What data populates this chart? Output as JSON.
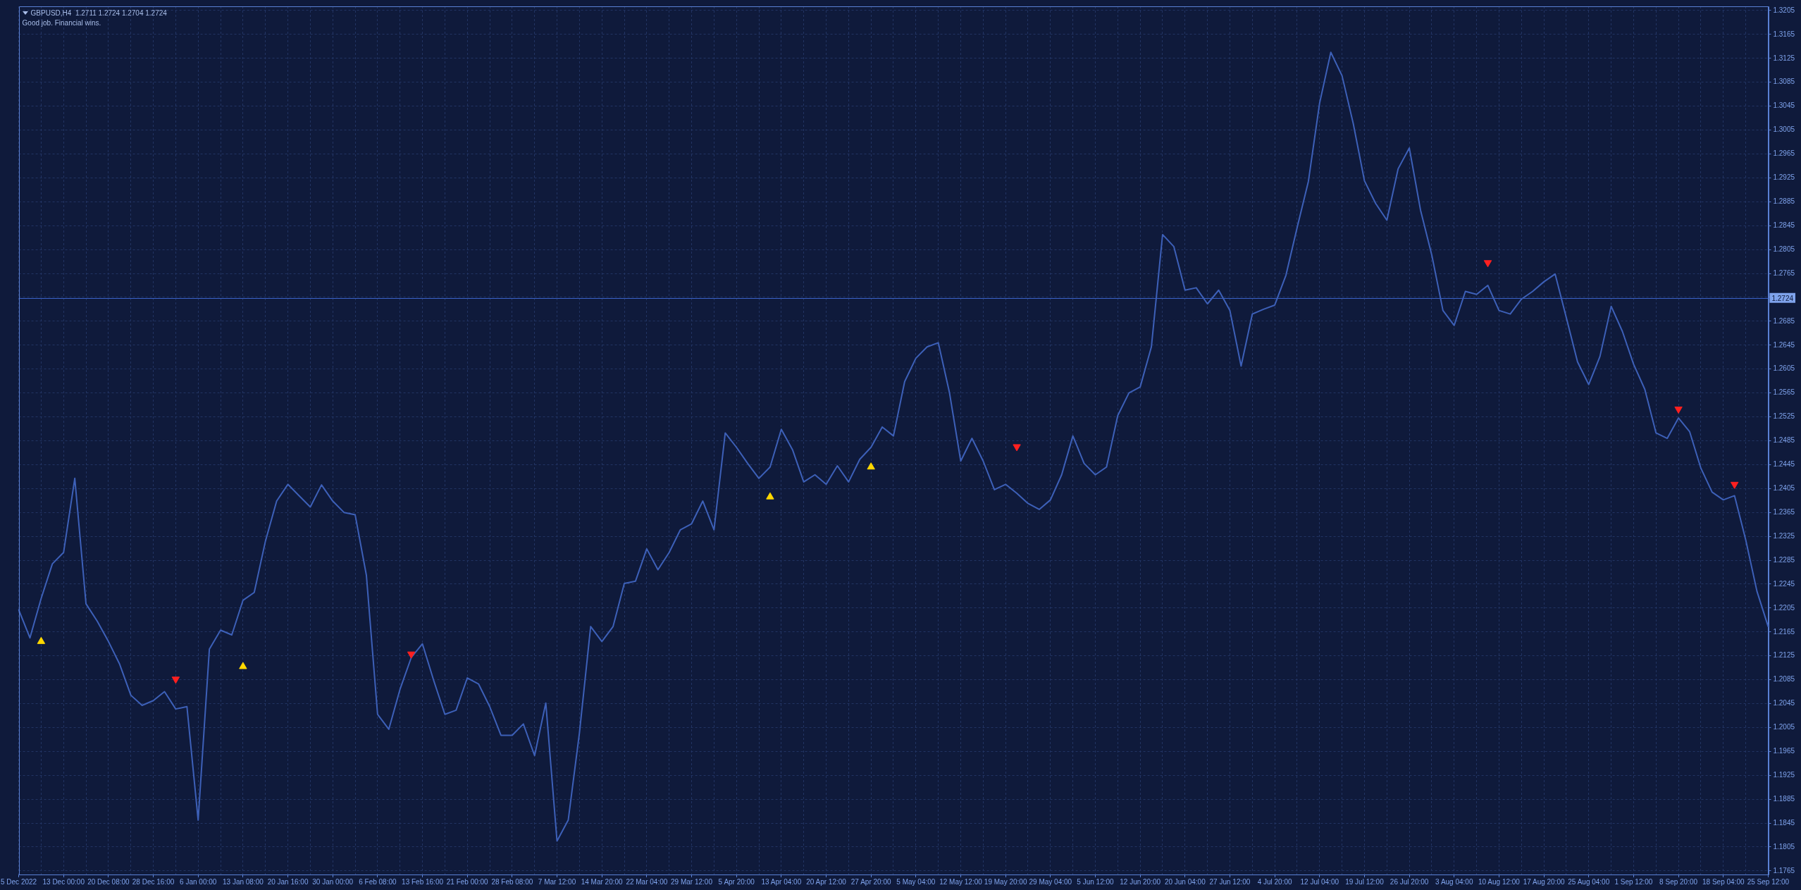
{
  "chart_data": {
    "type": "line",
    "title": "GBPUSD,H4  1.2711 1.2724 1.2704 1.2724",
    "annotations": [
      "Good job. Financial wins."
    ],
    "categories": [
      "5 Dec 2022",
      null,
      null,
      null,
      "13 Dec 00:00",
      null,
      null,
      null,
      "20 Dec 08:00",
      null,
      null,
      null,
      "28 Dec 16:00",
      null,
      null,
      null,
      "6 Jan 00:00",
      null,
      null,
      null,
      "13 Jan 08:00",
      null,
      null,
      null,
      "20 Jan 16:00",
      null,
      null,
      null,
      "30 Jan 00:00",
      null,
      null,
      null,
      "6 Feb 08:00",
      null,
      null,
      null,
      "13 Feb 16:00",
      null,
      null,
      null,
      "21 Feb 00:00",
      null,
      null,
      null,
      "28 Feb 08:00",
      null,
      null,
      null,
      "7 Mar 12:00",
      null,
      null,
      null,
      "14 Mar 20:00",
      null,
      null,
      null,
      "22 Mar 04:00",
      null,
      null,
      null,
      "29 Mar 12:00",
      null,
      null,
      null,
      "5 Apr 20:00",
      null,
      null,
      null,
      "13 Apr 04:00",
      null,
      null,
      null,
      "20 Apr 12:00",
      null,
      null,
      null,
      "27 Apr 20:00",
      null,
      null,
      null,
      "5 May 04:00",
      null,
      null,
      null,
      "12 May 12:00",
      null,
      null,
      null,
      "19 May 20:00",
      null,
      null,
      null,
      "29 May 04:00",
      null,
      null,
      null,
      "5 Jun 12:00",
      null,
      null,
      null,
      "12 Jun 20:00",
      null,
      null,
      null,
      "20 Jun 04:00",
      null,
      null,
      null,
      "27 Jun 12:00",
      null,
      null,
      null,
      "4 Jul 20:00",
      null,
      null,
      null,
      "12 Jul 04:00",
      null,
      null,
      null,
      "19 Jul 12:00",
      null,
      null,
      null,
      "26 Jul 20:00",
      null,
      null,
      null,
      "3 Aug 04:00",
      null,
      null,
      null,
      "10 Aug 12:00",
      null,
      null,
      null,
      "17 Aug 20:00",
      null,
      null,
      null,
      "25 Aug 04:00",
      null,
      null,
      null,
      "1 Sep 12:00",
      null,
      null,
      null,
      "8 Sep 20:00",
      null,
      null,
      null,
      "18 Sep 04:00",
      null,
      null,
      null,
      "25 Sep 12:00"
    ],
    "series": [
      {
        "color": "#3d60b8",
        "values": [
          1.2202,
          1.2155,
          1.2221,
          1.2279,
          1.2298,
          1.2422,
          1.2212,
          1.2183,
          1.2149,
          1.2111,
          1.2059,
          1.2042,
          1.205,
          1.2065,
          1.2036,
          1.204,
          1.185,
          1.2136,
          1.2168,
          1.216,
          1.2218,
          1.2231,
          1.2317,
          1.2384,
          1.2412,
          1.2393,
          1.2374,
          1.2411,
          1.2384,
          1.2365,
          1.2361,
          1.226,
          1.2027,
          1.2002,
          1.2069,
          1.2122,
          1.2145,
          1.2084,
          1.2027,
          1.2034,
          1.2088,
          1.2078,
          1.204,
          1.1992,
          1.1992,
          1.2011,
          1.1958,
          1.2046,
          1.1815,
          1.185,
          1.1996,
          1.2174,
          1.2149,
          1.2174,
          1.2246,
          1.225,
          1.2304,
          1.2269,
          1.2298,
          1.2336,
          1.2346,
          1.2384,
          1.2336,
          1.2498,
          1.2474,
          1.2447,
          1.2422,
          1.2441,
          1.2504,
          1.247,
          1.2416,
          1.2428,
          1.2412,
          1.2443,
          1.2416,
          1.2454,
          1.2474,
          1.2508,
          1.2493,
          1.2584,
          1.2623,
          1.2642,
          1.2649,
          1.2565,
          1.2451,
          1.2489,
          1.2451,
          1.2403,
          1.2412,
          1.2397,
          1.238,
          1.237,
          1.2386,
          1.2428,
          1.2493,
          1.2447,
          1.2428,
          1.2441,
          1.2527,
          1.2565,
          1.2575,
          1.2642,
          1.283,
          1.281,
          1.2737,
          1.2741,
          1.2714,
          1.2737,
          1.2703,
          1.261,
          1.2697,
          1.2705,
          1.2712,
          1.2762,
          1.2842,
          1.2919,
          1.305,
          1.3135,
          1.3096,
          1.3016,
          1.292,
          1.2882,
          1.2854,
          1.294,
          1.2975,
          1.2871,
          1.2796,
          1.2703,
          1.2678,
          1.2735,
          1.273,
          1.2745,
          1.2703,
          1.2697,
          1.2722,
          1.2735,
          1.2751,
          1.2764,
          1.2691,
          1.2617,
          1.2579,
          1.2626,
          1.271,
          1.2668,
          1.2613,
          1.2571,
          1.2498,
          1.2489,
          1.2523,
          1.25,
          1.2439,
          1.2399,
          1.2386,
          1.2393,
          1.2319,
          1.2233,
          1.2174
        ]
      },
      {
        "type": "scatter",
        "color": "#ffd800",
        "marker": "triangle",
        "values": [
          null,
          null,
          1.2149,
          null,
          null,
          null,
          null,
          null,
          null,
          null,
          null,
          null,
          null,
          null,
          null,
          null,
          null,
          null,
          null,
          null,
          1.2107,
          null,
          null,
          null,
          null,
          null,
          null,
          null,
          null,
          null,
          null,
          null,
          null,
          null,
          null,
          null,
          null,
          null,
          null,
          null,
          null,
          null,
          null,
          null,
          null,
          null,
          null,
          null,
          null,
          null,
          null,
          null,
          null,
          null,
          null,
          null,
          null,
          null,
          null,
          null,
          null,
          null,
          null,
          null,
          null,
          null,
          null,
          1.2391,
          null,
          null,
          null,
          null,
          null,
          null,
          null,
          null,
          1.2441,
          null,
          null,
          null,
          null,
          null,
          null,
          null,
          null,
          null,
          null,
          null,
          null,
          null,
          null,
          null,
          null,
          null,
          null,
          null,
          null,
          null,
          null,
          null,
          null,
          null,
          null,
          null,
          null,
          null,
          null,
          null,
          null,
          null,
          null,
          null,
          null,
          null,
          null,
          null,
          null,
          null,
          null,
          null,
          null,
          null,
          null,
          null,
          null,
          null,
          null,
          null,
          null,
          null,
          null,
          null,
          null,
          null,
          null,
          null,
          null,
          null,
          null,
          null,
          null,
          null,
          null,
          null,
          null,
          null,
          null,
          null,
          null,
          null,
          null,
          null,
          null,
          null,
          null,
          null,
          null
        ]
      },
      {
        "type": "scatter",
        "color": "#ff2020",
        "marker": "triangle",
        "values": [
          null,
          null,
          null,
          null,
          null,
          null,
          null,
          null,
          null,
          null,
          null,
          null,
          null,
          null,
          1.2086,
          null,
          null,
          null,
          null,
          null,
          null,
          null,
          null,
          null,
          null,
          null,
          null,
          null,
          null,
          null,
          null,
          null,
          null,
          null,
          null,
          1.2128,
          null,
          null,
          null,
          null,
          null,
          null,
          null,
          null,
          null,
          null,
          null,
          null,
          null,
          null,
          null,
          null,
          null,
          null,
          null,
          null,
          null,
          null,
          null,
          null,
          null,
          null,
          null,
          null,
          null,
          null,
          null,
          null,
          null,
          null,
          null,
          null,
          null,
          null,
          null,
          null,
          null,
          null,
          null,
          null,
          null,
          null,
          null,
          null,
          null,
          null,
          null,
          null,
          null,
          1.2475,
          null,
          null,
          null,
          null,
          null,
          null,
          null,
          null,
          null,
          null,
          null,
          null,
          null,
          null,
          null,
          null,
          null,
          null,
          null,
          null,
          null,
          null,
          null,
          null,
          null,
          null,
          null,
          null,
          null,
          null,
          null,
          null,
          null,
          null,
          null,
          null,
          null,
          null,
          null,
          null,
          null,
          1.2783,
          null,
          null,
          null,
          null,
          null,
          null,
          null,
          null,
          null,
          null,
          null,
          null,
          null,
          null,
          null,
          null,
          1.2538,
          null,
          null,
          null,
          null,
          1.2412,
          null,
          null,
          null
        ]
      }
    ],
    "ylim": [
      1.1759,
      1.3212
    ],
    "yticks": [
      1.1765,
      1.1805,
      1.1845,
      1.1885,
      1.1925,
      1.1965,
      1.2005,
      1.2045,
      1.2085,
      1.2125,
      1.2165,
      1.2205,
      1.2245,
      1.2285,
      1.2325,
      1.2365,
      1.2405,
      1.2445,
      1.2485,
      1.2525,
      1.2565,
      1.2605,
      1.2645,
      1.2685,
      {
        "value": 1.2725,
        "label": null
      },
      1.2765,
      1.2805,
      1.2845,
      1.2885,
      1.2925,
      1.2965,
      1.3005,
      1.3045,
      1.3085,
      1.3125,
      1.3165,
      1.3205
    ],
    "ref_lines": [
      {
        "axis": "y",
        "value": 1.2724,
        "label": "1.2724",
        "color": "#3a62c8"
      }
    ],
    "grid": true
  }
}
